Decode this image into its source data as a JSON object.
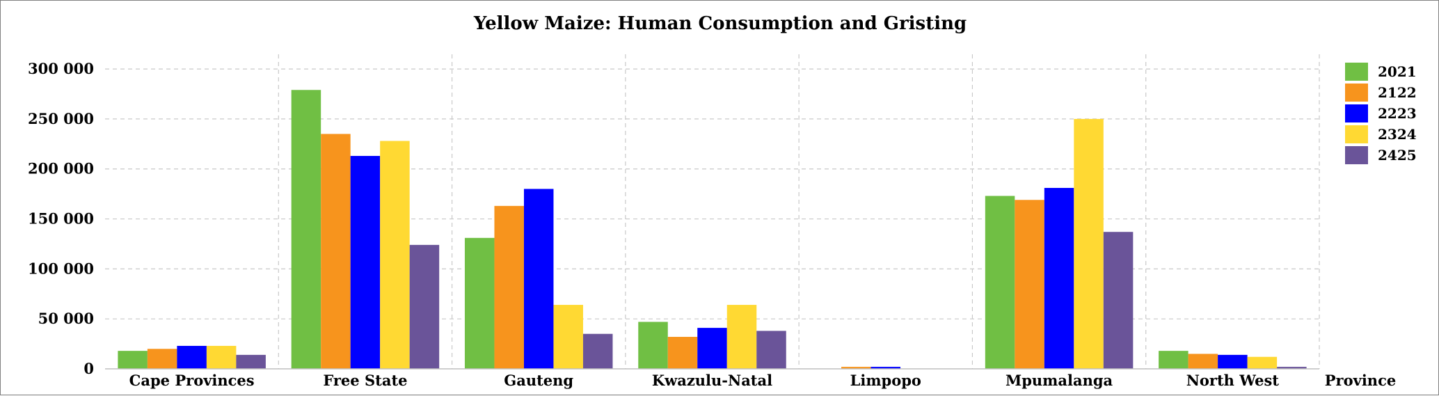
{
  "chart_data": {
    "type": "bar",
    "title": "Yellow Maize: Human Consumption and Gristing",
    "xlabel": "Province",
    "ylabel": "",
    "ylim": [
      0,
      330000
    ],
    "yticks": [
      0,
      50000,
      100000,
      150000,
      200000,
      250000,
      300000
    ],
    "ytick_labels": [
      "0",
      "50 000",
      "100 000",
      "150 000",
      "200 000",
      "250 000",
      "300 000"
    ],
    "grid": true,
    "legend_position": "right",
    "categories": [
      "Cape Provinces",
      "Free State",
      "Gauteng",
      "Kwazulu-Natal",
      "Limpopo",
      "Mpumalanga",
      "North West"
    ],
    "series": [
      {
        "name": "2021",
        "color": "#70bf44",
        "values": [
          18000,
          279000,
          131000,
          47000,
          0,
          173000,
          18000
        ]
      },
      {
        "name": "2122",
        "color": "#f7941d",
        "values": [
          20000,
          235000,
          163000,
          32000,
          2000,
          169000,
          15000
        ]
      },
      {
        "name": "2223",
        "color": "#0000ff",
        "values": [
          23000,
          213000,
          180000,
          41000,
          2000,
          181000,
          14000
        ]
      },
      {
        "name": "2324",
        "color": "#ffd933",
        "values": [
          23000,
          228000,
          64000,
          64000,
          0,
          250000,
          12000
        ]
      },
      {
        "name": "2425",
        "color": "#6a5499",
        "values": [
          14000,
          124000,
          35000,
          38000,
          0,
          137000,
          2000
        ]
      }
    ]
  }
}
